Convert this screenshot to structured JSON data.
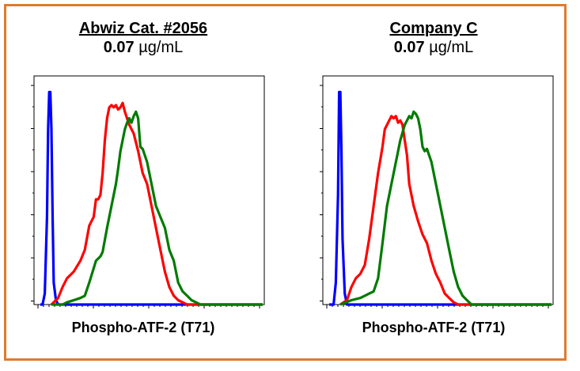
{
  "chart_data": [
    {
      "type": "line",
      "title": "Abwiz Cat. #2056",
      "subtitle_value": "0.07",
      "subtitle_unit": "µg/mL",
      "xlabel": "Phospho-ATF-2 (T71)",
      "ylabel": "",
      "grid": false,
      "xlim": [
        0,
        100
      ],
      "ylim": [
        0,
        100
      ],
      "series": [
        {
          "color": "#0000ff",
          "x": [
            0,
            1,
            2,
            3,
            3.5,
            4,
            4.5,
            5,
            5.5,
            6,
            7,
            8,
            10,
            100
          ],
          "y": [
            0,
            0,
            5,
            40,
            80,
            97,
            97,
            80,
            40,
            10,
            2,
            0,
            0,
            0
          ]
        },
        {
          "color": "#ff0000",
          "x": [
            5,
            8,
            10,
            12,
            15,
            18,
            20,
            22,
            24,
            25,
            26,
            27,
            28,
            29,
            30,
            31,
            32,
            33,
            34,
            35,
            36,
            37,
            38,
            39,
            40,
            42,
            44,
            46,
            48,
            50,
            52,
            54,
            56,
            58,
            60,
            62,
            64,
            66,
            70,
            75,
            80,
            100
          ],
          "y": [
            0,
            3,
            8,
            12,
            15,
            20,
            25,
            36,
            40,
            48,
            48,
            50,
            60,
            75,
            85,
            90,
            91,
            90,
            91,
            89,
            90,
            92,
            88,
            85,
            82,
            78,
            70,
            60,
            55,
            45,
            35,
            25,
            15,
            8,
            4,
            2,
            1,
            0,
            0,
            0,
            0,
            0
          ]
        },
        {
          "color": "#007a00",
          "x": [
            5,
            10,
            12,
            15,
            18,
            20,
            22,
            25,
            27,
            28,
            30,
            32,
            34,
            35,
            36,
            38,
            39,
            40,
            41,
            42,
            43,
            44,
            45,
            46,
            48,
            50,
            52,
            54,
            56,
            58,
            60,
            62,
            64,
            66,
            68,
            70,
            72,
            75,
            80,
            100
          ],
          "y": [
            0,
            0,
            1,
            2,
            3,
            4,
            10,
            20,
            22,
            24,
            35,
            45,
            55,
            62,
            70,
            80,
            83,
            85,
            83,
            86,
            88,
            85,
            72,
            71,
            65,
            55,
            45,
            40,
            35,
            25,
            20,
            10,
            6,
            4,
            2,
            1,
            0,
            0,
            0,
            0
          ]
        }
      ]
    },
    {
      "type": "line",
      "title": "Company C",
      "subtitle_value": "0.07",
      "subtitle_unit": "µg/mL",
      "xlabel": "Phospho-ATF-2 (T71)",
      "ylabel": "",
      "grid": false,
      "xlim": [
        0,
        100
      ],
      "ylim": [
        0,
        100
      ],
      "series": [
        {
          "color": "#0000ff",
          "x": [
            0,
            2,
            3,
            4,
            4.5,
            5,
            5.5,
            6,
            7,
            8,
            10,
            100
          ],
          "y": [
            0,
            0,
            10,
            50,
            97,
            97,
            70,
            30,
            5,
            0,
            0,
            0
          ]
        },
        {
          "color": "#ff0000",
          "x": [
            5,
            8,
            10,
            12,
            14,
            16,
            18,
            20,
            22,
            24,
            25,
            26,
            27,
            28,
            29,
            30,
            31,
            32,
            33,
            34,
            35,
            36,
            38,
            40,
            42,
            44,
            46,
            48,
            50,
            52,
            54,
            56,
            58,
            60,
            65,
            70,
            100
          ],
          "y": [
            0,
            2,
            8,
            12,
            14,
            18,
            30,
            45,
            60,
            72,
            80,
            82,
            84,
            86,
            85,
            86,
            83,
            84,
            82,
            75,
            68,
            55,
            45,
            38,
            32,
            28,
            20,
            14,
            10,
            5,
            3,
            1,
            0,
            0,
            0,
            0,
            0
          ]
        },
        {
          "color": "#007a00",
          "x": [
            5,
            10,
            14,
            16,
            18,
            20,
            22,
            24,
            26,
            28,
            30,
            32,
            34,
            35,
            36,
            37,
            38,
            39,
            40,
            41,
            42,
            43,
            44,
            46,
            48,
            50,
            52,
            54,
            56,
            58,
            60,
            62,
            64,
            66,
            70,
            100
          ],
          "y": [
            0,
            2,
            3,
            4,
            5,
            6,
            12,
            28,
            45,
            55,
            65,
            75,
            82,
            84,
            86,
            85,
            88,
            87,
            85,
            80,
            72,
            70,
            71,
            65,
            55,
            45,
            35,
            25,
            15,
            8,
            4,
            2,
            0,
            0,
            0,
            0
          ]
        }
      ]
    }
  ]
}
